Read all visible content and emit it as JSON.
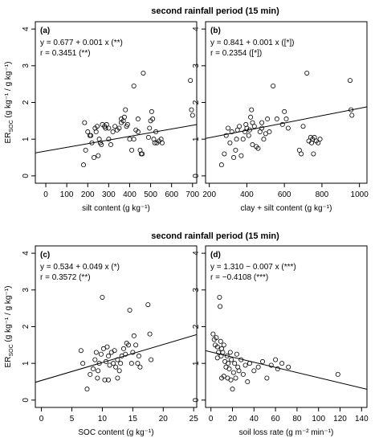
{
  "figure": {
    "top_title": "second rainfall period (15 min)",
    "bottom_title": "second rainfall period (15 min)"
  },
  "chart_data": [
    {
      "type": "scatter",
      "panel": "(a)",
      "title": "",
      "xlabel": "silt content (g kg⁻¹)",
      "ylabel": "ER_SOC (g kg⁻¹ / g kg⁻¹)",
      "ylabel_main": "ER",
      "ylabel_sub": "SOC",
      "ylabel_rest": " (g kg⁻¹ / g kg⁻¹)",
      "equation": "y = 0.677 + 0.001 x (**)",
      "r_text": "r = 0.3451 (**)",
      "xlim": [
        -50,
        720
      ],
      "ylim": [
        -0.2,
        4.2
      ],
      "xticks": [
        0,
        100,
        200,
        300,
        400,
        500,
        600,
        700
      ],
      "yticks": [
        0,
        1,
        2,
        3,
        4
      ],
      "grid": false,
      "regression": {
        "intercept": 0.677,
        "slope": 0.001
      },
      "points": [
        [
          180,
          0.3
        ],
        [
          190,
          0.7
        ],
        [
          185,
          1.45
        ],
        [
          200,
          1.2
        ],
        [
          210,
          1.1
        ],
        [
          215,
          1.1
        ],
        [
          220,
          0.9
        ],
        [
          230,
          0.5
        ],
        [
          235,
          1.3
        ],
        [
          240,
          1.2
        ],
        [
          245,
          1.35
        ],
        [
          250,
          0.55
        ],
        [
          255,
          1.0
        ],
        [
          260,
          0.9
        ],
        [
          265,
          0.85
        ],
        [
          270,
          1.4
        ],
        [
          280,
          1.35
        ],
        [
          285,
          1.3
        ],
        [
          290,
          1.4
        ],
        [
          300,
          1.3
        ],
        [
          310,
          0.85
        ],
        [
          320,
          1.2
        ],
        [
          330,
          1.35
        ],
        [
          340,
          1.25
        ],
        [
          350,
          1.3
        ],
        [
          360,
          1.45
        ],
        [
          370,
          1.5
        ],
        [
          375,
          1.6
        ],
        [
          380,
          1.8
        ],
        [
          385,
          1.35
        ],
        [
          390,
          1.4
        ],
        [
          400,
          1.0
        ],
        [
          410,
          0.7
        ],
        [
          420,
          1.0
        ],
        [
          430,
          1.25
        ],
        [
          440,
          1.2
        ],
        [
          450,
          0.7
        ],
        [
          455,
          0.6
        ],
        [
          460,
          0.6
        ],
        [
          465,
          2.8
        ],
        [
          420,
          2.45
        ],
        [
          490,
          1.05
        ],
        [
          495,
          1.3
        ],
        [
          500,
          1.5
        ],
        [
          505,
          1.75
        ],
        [
          510,
          1.55
        ],
        [
          515,
          1.0
        ],
        [
          520,
          0.9
        ],
        [
          525,
          1.2
        ],
        [
          530,
          0.9
        ],
        [
          540,
          0.95
        ],
        [
          550,
          1.0
        ],
        [
          555,
          0.9
        ],
        [
          690,
          2.6
        ],
        [
          695,
          1.8
        ],
        [
          700,
          1.65
        ],
        [
          360,
          1.55
        ],
        [
          440,
          1.55
        ],
        [
          300,
          1.0
        ]
      ]
    },
    {
      "type": "scatter",
      "panel": "(b)",
      "title": "",
      "xlabel": "clay + silt content (g kg⁻¹)",
      "ylabel": "",
      "equation": "y = 0.841 + 0.001 x ([*])",
      "r_text": "r = 0.2354 ([*])",
      "xlim": [
        180,
        1040
      ],
      "ylim": [
        -0.2,
        4.2
      ],
      "xticks": [
        200,
        400,
        600,
        800,
        1000
      ],
      "yticks": [
        0,
        1,
        2,
        3,
        4
      ],
      "grid": false,
      "regression": {
        "intercept": 0.841,
        "slope": 0.001
      },
      "points": [
        [
          265,
          0.3
        ],
        [
          280,
          0.6
        ],
        [
          290,
          1.1
        ],
        [
          300,
          1.3
        ],
        [
          310,
          0.9
        ],
        [
          320,
          1.2
        ],
        [
          330,
          0.5
        ],
        [
          340,
          0.7
        ],
        [
          345,
          1.0
        ],
        [
          350,
          1.25
        ],
        [
          360,
          1.35
        ],
        [
          370,
          0.55
        ],
        [
          380,
          1.0
        ],
        [
          390,
          1.2
        ],
        [
          395,
          1.4
        ],
        [
          400,
          1.3
        ],
        [
          410,
          1.1
        ],
        [
          415,
          1.25
        ],
        [
          420,
          1.6
        ],
        [
          425,
          1.8
        ],
        [
          430,
          1.45
        ],
        [
          440,
          1.35
        ],
        [
          450,
          0.8
        ],
        [
          460,
          0.75
        ],
        [
          470,
          1.2
        ],
        [
          480,
          1.3
        ],
        [
          490,
          1.0
        ],
        [
          500,
          1.15
        ],
        [
          510,
          1.55
        ],
        [
          520,
          1.2
        ],
        [
          540,
          2.45
        ],
        [
          560,
          1.55
        ],
        [
          590,
          1.4
        ],
        [
          600,
          1.75
        ],
        [
          610,
          1.55
        ],
        [
          620,
          1.3
        ],
        [
          680,
          0.7
        ],
        [
          690,
          0.6
        ],
        [
          700,
          1.35
        ],
        [
          720,
          2.8
        ],
        [
          730,
          0.95
        ],
        [
          740,
          1.05
        ],
        [
          745,
          0.9
        ],
        [
          750,
          1.0
        ],
        [
          755,
          0.6
        ],
        [
          760,
          1.05
        ],
        [
          770,
          0.95
        ],
        [
          780,
          0.9
        ],
        [
          790,
          1.0
        ],
        [
          950,
          2.6
        ],
        [
          955,
          1.8
        ],
        [
          960,
          1.65
        ],
        [
          480,
          1.45
        ],
        [
          430,
          0.85
        ]
      ]
    },
    {
      "type": "scatter",
      "panel": "(c)",
      "title": "",
      "xlabel": "SOC content (g kg⁻¹)",
      "ylabel": "ER_SOC (g kg⁻¹ / g kg⁻¹)",
      "ylabel_main": "ER",
      "ylabel_sub": "SOC",
      "ylabel_rest": " (g kg⁻¹ / g kg⁻¹)",
      "equation": "y = 0.534 + 0.049 x (*)",
      "r_text": "r = 0.3572 (**)",
      "xlim": [
        -1,
        25.5
      ],
      "ylim": [
        -0.2,
        4.2
      ],
      "xticks": [
        0,
        5,
        10,
        15,
        20,
        25
      ],
      "yticks": [
        0,
        1,
        2,
        3,
        4
      ],
      "grid": false,
      "regression": {
        "intercept": 0.534,
        "slope": 0.049
      },
      "points": [
        [
          6.5,
          1.35
        ],
        [
          6.8,
          1.0
        ],
        [
          7.5,
          0.3
        ],
        [
          8.0,
          0.7
        ],
        [
          8.5,
          0.85
        ],
        [
          8.8,
          1.1
        ],
        [
          9.0,
          1.3
        ],
        [
          9.2,
          0.6
        ],
        [
          9.5,
          1.0
        ],
        [
          9.8,
          1.25
        ],
        [
          10.0,
          2.8
        ],
        [
          10.2,
          1.4
        ],
        [
          10.4,
          0.55
        ],
        [
          10.6,
          1.05
        ],
        [
          10.8,
          1.45
        ],
        [
          11.0,
          1.2
        ],
        [
          11.2,
          0.95
        ],
        [
          11.5,
          1.3
        ],
        [
          11.8,
          1.0
        ],
        [
          12.0,
          1.35
        ],
        [
          12.2,
          0.9
        ],
        [
          12.5,
          1.1
        ],
        [
          12.8,
          0.8
        ],
        [
          13.0,
          1.0
        ],
        [
          13.2,
          1.2
        ],
        [
          13.5,
          1.4
        ],
        [
          13.8,
          1.25
        ],
        [
          14.0,
          1.55
        ],
        [
          14.3,
          1.5
        ],
        [
          14.5,
          2.45
        ],
        [
          14.8,
          1.0
        ],
        [
          15.0,
          1.3
        ],
        [
          15.2,
          1.75
        ],
        [
          15.5,
          1.5
        ],
        [
          15.8,
          1.0
        ],
        [
          16.0,
          1.2
        ],
        [
          16.2,
          0.9
        ],
        [
          17.5,
          2.6
        ],
        [
          17.8,
          1.8
        ],
        [
          18.0,
          1.1
        ],
        [
          9.3,
          0.8
        ],
        [
          11.0,
          0.55
        ],
        [
          12.5,
          0.6
        ]
      ]
    },
    {
      "type": "scatter",
      "panel": "(d)",
      "title": "",
      "xlabel": "soil loss rate (g m⁻² min⁻¹)",
      "ylabel": "",
      "equation": "y = 1.310 − 0.007 x (***)",
      "r_text": "r = −0.4108 (***)",
      "xlim": [
        -5,
        145
      ],
      "ylim": [
        -0.2,
        4.2
      ],
      "xticks": [
        0,
        20,
        40,
        60,
        80,
        100,
        120,
        140
      ],
      "yticks": [
        0,
        1,
        2,
        3,
        4
      ],
      "grid": false,
      "regression": {
        "intercept": 1.31,
        "slope": -0.007
      },
      "points": [
        [
          2,
          1.8
        ],
        [
          3,
          1.65
        ],
        [
          4,
          1.5
        ],
        [
          5,
          1.7
        ],
        [
          6,
          1.45
        ],
        [
          7,
          1.3
        ],
        [
          8,
          2.8
        ],
        [
          8.5,
          2.55
        ],
        [
          9,
          1.6
        ],
        [
          9.5,
          1.2
        ],
        [
          10,
          1.4
        ],
        [
          11,
          1.3
        ],
        [
          12,
          1.5
        ],
        [
          13,
          1.05
        ],
        [
          14,
          0.9
        ],
        [
          15,
          1.2
        ],
        [
          15.5,
          0.6
        ],
        [
          16,
          1.0
        ],
        [
          17,
          0.85
        ],
        [
          18,
          1.3
        ],
        [
          18.5,
          0.55
        ],
        [
          19,
          1.1
        ],
        [
          20,
          0.3
        ],
        [
          21,
          0.75
        ],
        [
          22,
          1.0
        ],
        [
          23,
          0.6
        ],
        [
          24,
          1.25
        ],
        [
          25,
          0.9
        ],
        [
          26,
          0.8
        ],
        [
          28,
          1.1
        ],
        [
          30,
          0.7
        ],
        [
          32,
          0.95
        ],
        [
          34,
          0.5
        ],
        [
          36,
          1.0
        ],
        [
          40,
          0.8
        ],
        [
          44,
          0.9
        ],
        [
          48,
          1.05
        ],
        [
          52,
          0.6
        ],
        [
          56,
          0.95
        ],
        [
          60,
          1.1
        ],
        [
          62,
          0.85
        ],
        [
          66,
          1.0
        ],
        [
          72,
          0.9
        ],
        [
          118,
          0.7
        ],
        [
          10,
          0.6
        ],
        [
          12,
          0.65
        ],
        [
          6,
          1.15
        ]
      ]
    }
  ]
}
